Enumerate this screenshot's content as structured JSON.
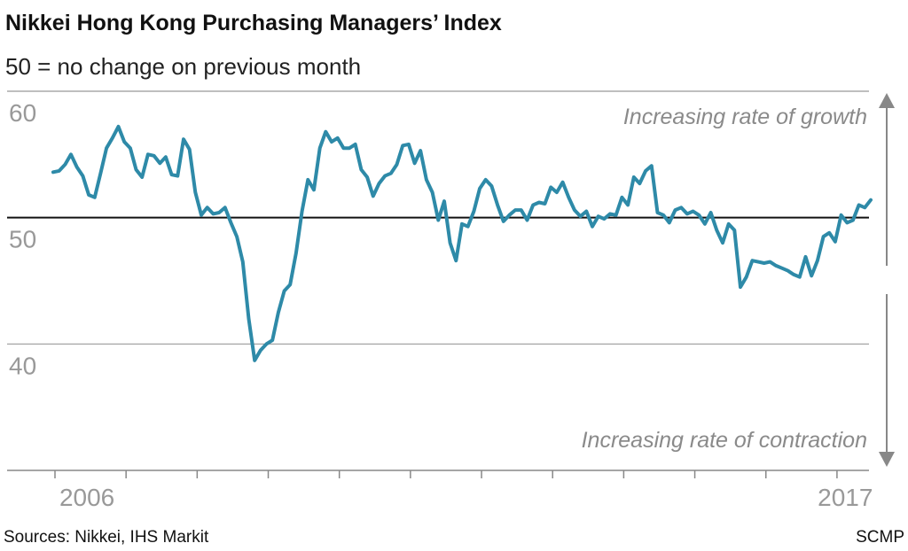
{
  "chart_data": {
    "type": "line",
    "title": "Nikkei Hong Kong Purchasing Managers’ Index",
    "subtitle": "50 = no change on previous month",
    "annotations": [
      "Increasing rate of growth",
      "Increasing rate of contraction"
    ],
    "source": "Sources: Nikkei, IHS Markit",
    "credit": "SCMP",
    "categories": [
      null,
      null,
      null,
      null,
      null,
      null,
      "2006",
      null,
      null,
      null,
      null,
      null,
      null,
      null,
      null,
      null,
      null,
      null,
      null,
      null,
      null,
      null,
      null,
      null,
      null,
      null,
      null,
      null,
      null,
      null,
      null,
      null,
      null,
      null,
      null,
      null,
      null,
      null,
      null,
      null,
      null,
      null,
      null,
      null,
      null,
      null,
      null,
      null,
      null,
      null,
      null,
      null,
      null,
      null,
      null,
      null,
      null,
      null,
      null,
      null,
      null,
      null,
      null,
      null,
      null,
      null,
      null,
      null,
      null,
      null,
      null,
      null,
      null,
      null,
      null,
      null,
      null,
      null,
      null,
      null,
      null,
      null,
      null,
      null,
      null,
      null,
      null,
      null,
      null,
      null,
      null,
      null,
      null,
      null,
      null,
      null,
      null,
      null,
      null,
      null,
      null,
      null,
      null,
      null,
      null,
      null,
      null,
      null,
      null,
      null,
      null,
      null,
      null,
      null,
      null,
      null,
      null,
      null,
      null,
      null,
      null,
      null,
      null,
      null,
      null,
      null,
      null,
      null,
      null,
      null,
      null,
      null,
      null,
      null,
      "2017",
      null,
      null,
      null,
      null
    ],
    "series": [
      {
        "name": "PMI",
        "color": "#2e8aa8",
        "values": [
          53.6,
          53.7,
          54.2,
          55.0,
          54.0,
          53.3,
          51.8,
          51.6,
          53.5,
          55.5,
          56.3,
          57.2,
          56.0,
          55.5,
          53.8,
          53.2,
          55.0,
          54.9,
          54.3,
          54.8,
          53.4,
          53.3,
          56.2,
          55.4,
          52.0,
          50.2,
          50.8,
          50.3,
          50.4,
          50.8,
          49.6,
          48.5,
          46.5,
          42.0,
          38.7,
          39.5,
          40.0,
          40.3,
          42.5,
          44.2,
          44.7,
          47.2,
          50.5,
          53.0,
          52.2,
          55.5,
          56.8,
          56.0,
          56.3,
          55.5,
          55.5,
          55.8,
          53.8,
          53.2,
          51.7,
          52.7,
          53.3,
          53.5,
          54.2,
          55.7,
          55.8,
          54.3,
          55.3,
          53.0,
          52.0,
          49.8,
          51.3,
          48.0,
          46.6,
          49.5,
          49.3,
          50.5,
          52.3,
          53.0,
          52.5,
          51.0,
          49.7,
          50.2,
          50.6,
          50.6,
          49.8,
          51.0,
          51.2,
          51.1,
          52.4,
          52.0,
          52.8,
          51.6,
          50.6,
          50.1,
          50.5,
          49.3,
          50.1,
          49.9,
          50.3,
          50.2,
          51.6,
          51.0,
          53.2,
          52.7,
          53.7,
          54.1,
          50.4,
          50.2,
          49.6,
          50.6,
          50.8,
          50.3,
          50.5,
          50.2,
          49.5,
          50.4,
          49.0,
          48.0,
          49.5,
          49.0,
          44.5,
          45.3,
          46.6,
          46.5,
          46.4,
          46.5,
          46.2,
          46.0,
          45.8,
          45.5,
          45.3,
          46.9,
          45.4,
          46.6,
          48.5,
          48.8,
          48.1,
          50.2,
          49.6,
          49.8,
          51.0,
          50.8,
          51.4
        ]
      }
    ],
    "ylim": [
      30,
      60
    ],
    "yticks": [
      40,
      50,
      60
    ],
    "reference_line": 50,
    "grid": true
  }
}
